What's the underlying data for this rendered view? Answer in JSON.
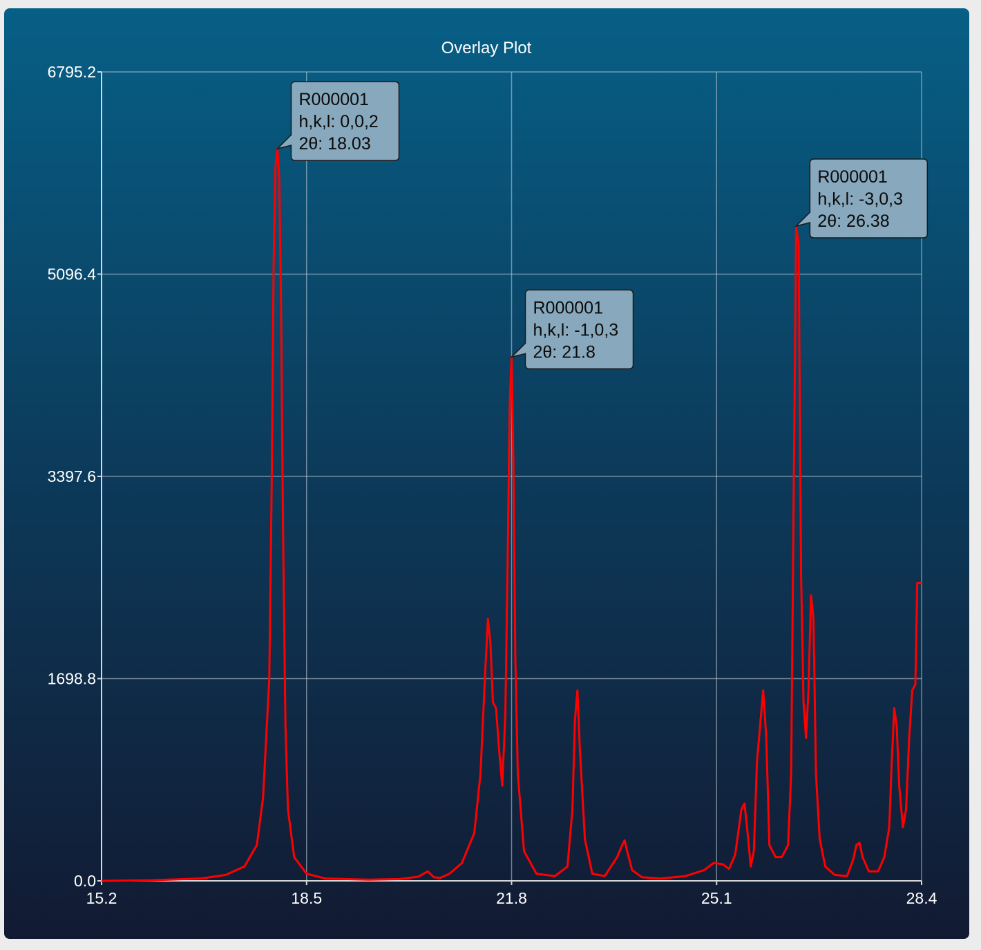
{
  "chart_data": {
    "type": "line",
    "title": "Overlay Plot",
    "xlabel": "",
    "ylabel": "",
    "xlim": [
      15.2,
      28.4
    ],
    "ylim": [
      0.0,
      6795.2
    ],
    "x_ticks": [
      "15.2",
      "18.5",
      "21.8",
      "25.1",
      "28.4"
    ],
    "y_ticks": [
      "0.0",
      "1698.8",
      "3397.6",
      "5096.4",
      "6795.2"
    ],
    "grid": true,
    "series": [
      {
        "name": "R000001",
        "color": "#ff0000",
        "x": [
          15.2,
          16.0,
          16.8,
          17.2,
          17.5,
          17.7,
          17.8,
          17.9,
          17.94,
          17.97,
          18.0,
          18.03,
          18.06,
          18.09,
          18.12,
          18.16,
          18.2,
          18.3,
          18.5,
          18.8,
          19.5,
          20.0,
          20.3,
          20.45,
          20.55,
          20.65,
          20.8,
          21.0,
          21.2,
          21.3,
          21.38,
          21.42,
          21.46,
          21.5,
          21.55,
          21.6,
          21.65,
          21.7,
          21.74,
          21.77,
          21.8,
          21.83,
          21.86,
          21.9,
          22.0,
          22.2,
          22.5,
          22.7,
          22.78,
          22.82,
          22.86,
          22.9,
          22.98,
          23.1,
          23.3,
          23.5,
          23.58,
          23.62,
          23.66,
          23.74,
          23.9,
          24.2,
          24.6,
          24.9,
          25.05,
          25.2,
          25.3,
          25.4,
          25.5,
          25.55,
          25.6,
          25.65,
          25.7,
          25.75,
          25.8,
          25.85,
          25.9,
          25.95,
          26.05,
          26.15,
          26.25,
          26.3,
          26.34,
          26.38,
          26.42,
          26.46,
          26.5,
          26.54,
          26.58,
          26.62,
          26.66,
          26.7,
          26.76,
          26.85,
          27.0,
          27.2,
          27.3,
          27.35,
          27.4,
          27.45,
          27.55,
          27.7,
          27.8,
          27.88,
          27.92,
          27.96,
          28.0,
          28.04,
          28.1,
          28.15,
          28.2,
          28.25,
          28.3,
          28.33,
          28.36,
          28.4
        ],
        "y": [
          0,
          5,
          20,
          50,
          120,
          300,
          700,
          1700,
          3400,
          5200,
          6000,
          6150,
          5900,
          4800,
          3000,
          1300,
          600,
          200,
          60,
          20,
          10,
          15,
          35,
          80,
          30,
          25,
          60,
          150,
          400,
          900,
          1800,
          2200,
          2000,
          1500,
          1450,
          1100,
          800,
          1400,
          2800,
          4000,
          4400,
          3500,
          1900,
          900,
          250,
          60,
          40,
          120,
          600,
          1350,
          1600,
          1100,
          350,
          60,
          40,
          200,
          300,
          340,
          250,
          90,
          30,
          20,
          40,
          90,
          150,
          140,
          100,
          220,
          600,
          650,
          400,
          120,
          250,
          1000,
          1300,
          1600,
          1200,
          300,
          200,
          200,
          300,
          900,
          3200,
          5500,
          5350,
          2600,
          1500,
          1200,
          1600,
          2400,
          2200,
          900,
          350,
          120,
          50,
          40,
          180,
          300,
          320,
          200,
          80,
          80,
          200,
          450,
          1000,
          1450,
          1300,
          800,
          450,
          600,
          1200,
          1600,
          1650,
          2500,
          2500,
          2500
        ]
      }
    ],
    "annotations": [
      {
        "series": "R000001",
        "hkl_label": "h,k,l: 0,0,2",
        "two_theta_label": "2θ: 18.03",
        "x": 18.03,
        "y": 6150
      },
      {
        "series": "R000001",
        "hkl_label": "h,k,l: -1,0,3",
        "two_theta_label": "2θ: 21.8",
        "x": 21.8,
        "y": 4400
      },
      {
        "series": "R000001",
        "hkl_label": "h,k,l: -3,0,3",
        "two_theta_label": "2θ: 26.38",
        "x": 26.38,
        "y": 5500
      }
    ]
  }
}
